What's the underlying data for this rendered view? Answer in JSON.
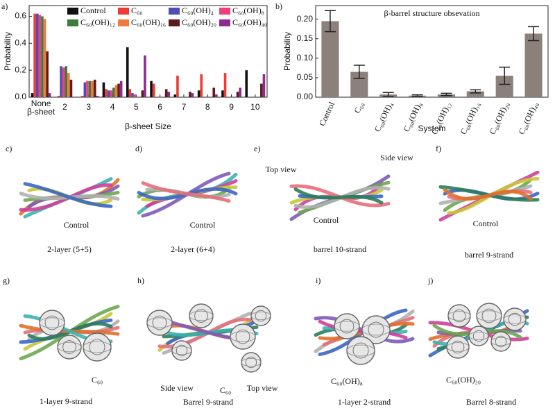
{
  "chart_data": [
    {
      "type": "bar",
      "label": "a)",
      "ylabel": "Probability",
      "xlabel": "β-sheet Size",
      "categories": [
        "None β-sheet",
        "2",
        "3",
        "4",
        "5",
        "6",
        "7",
        "8",
        "9",
        "10"
      ],
      "series": [
        {
          "name": "Control",
          "color": "#111111",
          "values": [
            0.03,
            0.0,
            0.0,
            0.11,
            0.37,
            0.12,
            0.02,
            0.05,
            0.05,
            0.2
          ]
        },
        {
          "name": "C₆₀",
          "color": "#ee3b36",
          "values": [
            0.62,
            0.01,
            0.01,
            0.06,
            0.06,
            0.1,
            0.16,
            0.17,
            0.18,
            0.0
          ]
        },
        {
          "name": "C₆₀(OH)₄",
          "color": "#4d4db3",
          "values": [
            0.62,
            0.23,
            0.11,
            0.05,
            0.03,
            0.0,
            0.0,
            0.0,
            0.0,
            0.0
          ]
        },
        {
          "name": "C₆₀(OH)₈",
          "color": "#ec3f7c",
          "values": [
            0.61,
            0.22,
            0.12,
            0.05,
            0.02,
            0.0,
            0.0,
            0.0,
            0.0,
            0.0
          ]
        },
        {
          "name": "C₆₀(OH)₁₂",
          "color": "#3d7d3a",
          "values": [
            0.6,
            0.23,
            0.12,
            0.07,
            0.0,
            0.0,
            0.0,
            0.0,
            0.0,
            0.0
          ]
        },
        {
          "name": "C₆₀(OH)₁₆",
          "color": "#f27a3e",
          "values": [
            0.58,
            0.18,
            0.12,
            0.09,
            0.0,
            0.0,
            0.0,
            0.0,
            0.0,
            0.0
          ]
        },
        {
          "name": "C₆₀(OH)₂₀",
          "color": "#5c1c1c",
          "values": [
            0.34,
            0.13,
            0.13,
            0.1,
            0.05,
            0.06,
            0.04,
            0.07,
            0.04,
            0.1
          ]
        },
        {
          "name": "C₆₀(OH)₄₀",
          "color": "#8c2d8e",
          "values": [
            0.03,
            0.0,
            0.01,
            0.12,
            0.31,
            0.04,
            0.03,
            0.02,
            0.07,
            0.17
          ]
        }
      ],
      "ylim": [
        0,
        0.68
      ],
      "yticks": [
        {
          "value": 0,
          "label": "0.0"
        },
        0.2,
        0.4,
        0.6
      ],
      "legend": "upper right",
      "legend_columns": 4
    },
    {
      "type": "bar",
      "label": "b)",
      "title": "β-barrel structure obsevation",
      "ylabel": "Probability",
      "xlabel": "System",
      "categories": [
        "Control",
        "C₆₀",
        "C₆₀(OH)₄",
        "C₆₀(OH)₈",
        "C₆₀(OH)₁₂",
        "C₆₀(OH)₁₆",
        "C₆₀(OH)₂₀",
        "C₆₀(OH)₄₀"
      ],
      "values": [
        0.195,
        0.065,
        0.007,
        0.004,
        0.007,
        0.015,
        0.055,
        0.163
      ],
      "errors": [
        0.027,
        0.017,
        0.005,
        0.002,
        0.003,
        0.004,
        0.022,
        0.018
      ],
      "color": "#8b807a",
      "ylim": [
        0,
        0.235
      ],
      "yticks": [
        {
          "value": 0,
          "label": "0.00"
        },
        {
          "value": 0.05,
          "label": "0.05"
        },
        {
          "value": 0.1,
          "label": "0.10"
        },
        {
          "value": 0.15,
          "label": "0.15"
        },
        {
          "value": 0.2,
          "label": "0.20"
        }
      ]
    }
  ],
  "panels": [
    {
      "label": "c)",
      "caption": "2-layer  (5+5)",
      "notes": [
        "Control"
      ]
    },
    {
      "label": "d)",
      "caption": "2-layer (6+4)",
      "notes": [
        "Control"
      ]
    },
    {
      "label": "e)",
      "caption": "barrel 10-strand",
      "notes": [
        "Top view",
        "Side view",
        "Control"
      ]
    },
    {
      "label": "f)",
      "caption": "barrel 9-strand",
      "notes": [
        "Control"
      ]
    },
    {
      "label": "g)",
      "caption": "1-layer 9-strand",
      "notes": [
        "C₆₀"
      ]
    },
    {
      "label": "h)",
      "caption": "Barrel 9-strand",
      "notes": [
        "Side view",
        "C₆₀",
        "Top view"
      ]
    },
    {
      "label": "i)",
      "caption": "1-layer 2-strand",
      "notes": [
        "C₆₀(OH)₈"
      ]
    },
    {
      "label": "j)",
      "caption": "Barrel 8-strand",
      "notes": [
        "C₆₀(OH)₂₀"
      ]
    }
  ]
}
